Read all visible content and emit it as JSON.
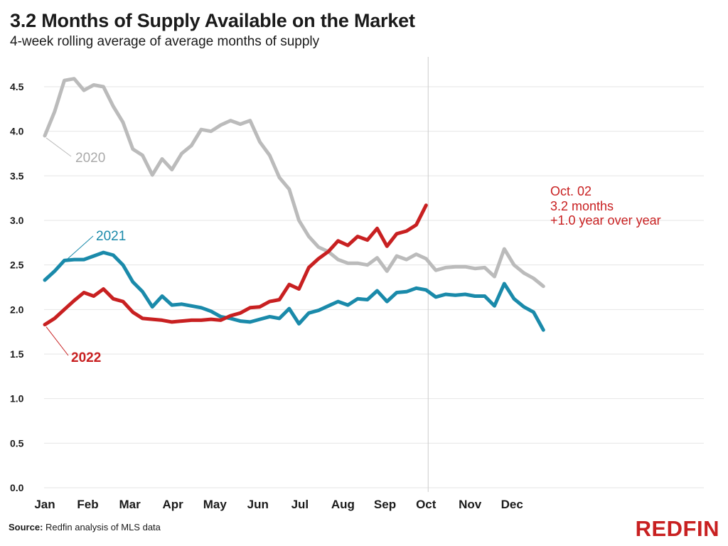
{
  "header": {
    "title": "3.2 Months of Supply Available on the Market",
    "subtitle": "4-week rolling average of average months of supply"
  },
  "footer": {
    "source_label": "Source:",
    "source_text": "Redfin analysis of MLS data",
    "logo": "REDFIN"
  },
  "colors": {
    "2020": "#bbbbbb",
    "2021": "#1a8aaa",
    "2022": "#c82021",
    "grid": "#e6e6e6",
    "marker": "#cccccc"
  },
  "chart_data": {
    "type": "line",
    "title": "3.2 Months of Supply Available on the Market",
    "subtitle": "4-week rolling average of average months of supply",
    "xlabel": "",
    "ylabel": "",
    "ylim": [
      0,
      4.6
    ],
    "yticks": [
      "0.0",
      "0.5",
      "1.0",
      "1.5",
      "2.0",
      "2.5",
      "3.0",
      "3.5",
      "4.0",
      "4.5"
    ],
    "x_ticks": [
      "Jan",
      "Feb",
      "Mar",
      "Apr",
      "May",
      "Jun",
      "Jul",
      "Aug",
      "Sep",
      "Oct",
      "Nov",
      "Dec"
    ],
    "x_unit": "week of year",
    "x_range": [
      1,
      52
    ],
    "grid": true,
    "vertical_marker_week": 40,
    "series": [
      {
        "name": "2020",
        "label": "2020",
        "values": [
          3.95,
          4.22,
          4.57,
          4.59,
          4.46,
          4.52,
          4.5,
          4.28,
          4.1,
          3.8,
          3.73,
          3.51,
          3.69,
          3.57,
          3.75,
          3.84,
          4.02,
          4.0,
          4.07,
          4.12,
          4.08,
          4.12,
          3.88,
          3.73,
          3.48,
          3.35,
          3.0,
          2.82,
          2.7,
          2.65,
          2.56,
          2.52,
          2.52,
          2.5,
          2.58,
          2.43,
          2.6,
          2.56,
          2.62,
          2.57,
          2.44,
          2.47,
          2.48,
          2.48,
          2.46,
          2.47,
          2.37,
          2.68,
          2.5,
          2.41,
          2.35,
          2.26
        ]
      },
      {
        "name": "2021",
        "label": "2021",
        "values": [
          2.33,
          2.43,
          2.55,
          2.56,
          2.56,
          2.6,
          2.64,
          2.61,
          2.5,
          2.31,
          2.2,
          2.03,
          2.15,
          2.05,
          2.06,
          2.04,
          2.02,
          1.98,
          1.92,
          1.9,
          1.87,
          1.86,
          1.89,
          1.92,
          1.9,
          2.01,
          1.84,
          1.96,
          1.99,
          2.04,
          2.09,
          2.05,
          2.12,
          2.11,
          2.21,
          2.09,
          2.19,
          2.2,
          2.24,
          2.22,
          2.14,
          2.17,
          2.16,
          2.17,
          2.15,
          2.15,
          2.04,
          2.29,
          2.12,
          2.03,
          1.97,
          1.77
        ]
      },
      {
        "name": "2022",
        "label": "2022",
        "values": [
          1.83,
          1.9,
          2.0,
          2.1,
          2.19,
          2.15,
          2.23,
          2.12,
          2.09,
          1.97,
          1.9,
          1.89,
          1.88,
          1.86,
          1.87,
          1.88,
          1.88,
          1.89,
          1.88,
          1.93,
          1.96,
          2.02,
          2.03,
          2.09,
          2.11,
          2.28,
          2.23,
          2.47,
          2.57,
          2.65,
          2.77,
          2.72,
          2.82,
          2.78,
          2.91,
          2.71,
          2.85,
          2.88,
          2.95,
          3.17
        ]
      }
    ],
    "annotations": {
      "label_2020": "2020",
      "label_2021": "2021",
      "label_2022": "2022",
      "callout_date": "Oct. 02",
      "callout_value": "3.2 months",
      "callout_change": "+1.0 year over year"
    }
  }
}
